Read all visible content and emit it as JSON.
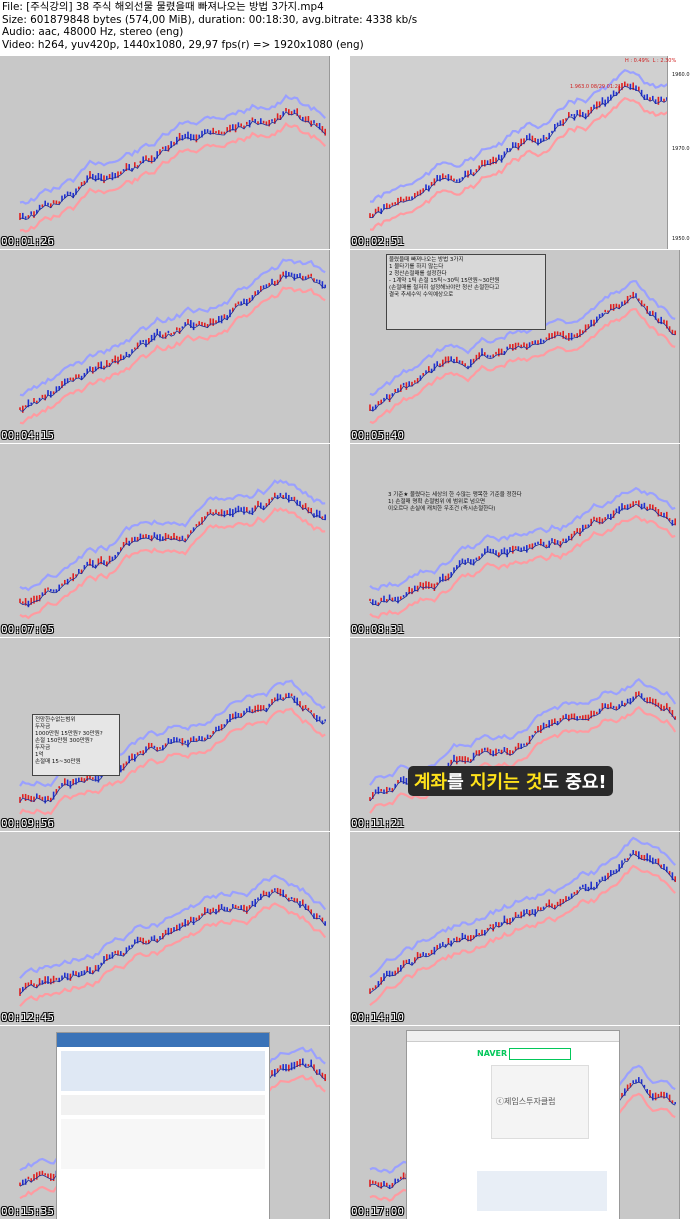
{
  "header": {
    "line1": "File: [주식강의] 38 주식 해외선물 물렸을때 빠져나오는 방법 3가지.mp4",
    "line2": "Size: 601879848 bytes (574,00 MiB), duration: 00:18:30, avg.bitrate: 4338 kb/s",
    "line3": "Audio: aac, 48000 Hz, stereo (eng)",
    "line4": "Video: h264, yuv420p, 1440x1080, 29,97 fps(r) => 1920x1080 (eng)"
  },
  "colors": {
    "chart_bg": "#c8c8c8",
    "candle_up": "#e02020",
    "candle_down": "#2030d0",
    "band_upper": "#9aa0ff",
    "band_lower": "#ff9aa0",
    "ma": "#1a2a9a"
  },
  "thumbnails": [
    {
      "time": "00:01:26"
    },
    {
      "time": "00:02:51"
    },
    {
      "time": "00:04:15"
    },
    {
      "time": "00:05:40"
    },
    {
      "time": "00:07:05"
    },
    {
      "time": "00:08:31"
    },
    {
      "time": "00:09:56"
    },
    {
      "time": "00:11:21"
    },
    {
      "time": "00:12:45"
    },
    {
      "time": "00:14:10"
    },
    {
      "time": "00:15:35"
    },
    {
      "time": "00:17:00"
    }
  ],
  "panels": {
    "t4_title": "물렸을때 빠져나오는 방법 3가지",
    "t4_line1": "1 물타기를 하지 않는다",
    "t4_line2": "2 청산손절매를 설정한다",
    "t4_line3": "- 1계약 1틱 손절 15틱~30틱 15만원~30만원",
    "t4_line4": "(손절매를 철저히 설정해놔야만 청산 손절한다고",
    "t4_line5": "결국 추세수익 수익예상으로",
    "t6_line1": "3 기준★ 물렸다는 세상의 한 수많는 맹목한 기준을 정한다",
    "t6_line2": "1) 손절매 명확 손절범위 에 범위로 넘으면",
    "t6_line3": "이오르다 손실에 캐치한 우조건 (즉시손절한다)",
    "t7_box1": "전망한수없는범위",
    "t7_box2": "두자금",
    "t7_box3": "1000만원 15만원? 30만원?",
    "t7_box4": "손절 150만원 300만원?",
    "t7_box5": "두자금",
    "t7_box6": "1억",
    "t7_box7": "손절매 15~30만원",
    "t8_banner_a": "계좌",
    "t8_banner_b": "를 ",
    "t8_banner_c": "지키는 것",
    "t8_banner_d": "도 중요!",
    "t12_site": "NAVER",
    "t12_watermark": "ⓒ제임스투자클럽"
  },
  "chart_axis": {
    "price_a": "1960.0",
    "price_b": "1970.0",
    "price_c": "1950.0",
    "stat_a": "1.963.0 08/29 01:21",
    "stat_b": "H : 0.49%  L : 2.30%"
  }
}
